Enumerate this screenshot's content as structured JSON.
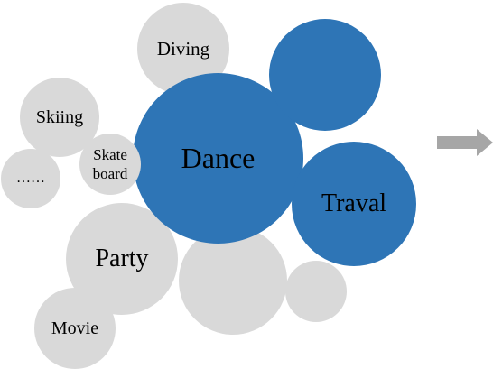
{
  "colors": {
    "grey_bubble": "#d9d9d9",
    "blue_bubble": "#2e75b6",
    "arrow": "#a6a6a6"
  },
  "bubbles": {
    "diving": "Diving",
    "skiing": "Skiing",
    "ellipsis": "……",
    "skateboard": "Skate\nboard",
    "party": "Party",
    "movie": "Movie",
    "dance": "Dance",
    "traval": "Traval"
  },
  "icons": {
    "arrow": "right-arrow-icon"
  }
}
